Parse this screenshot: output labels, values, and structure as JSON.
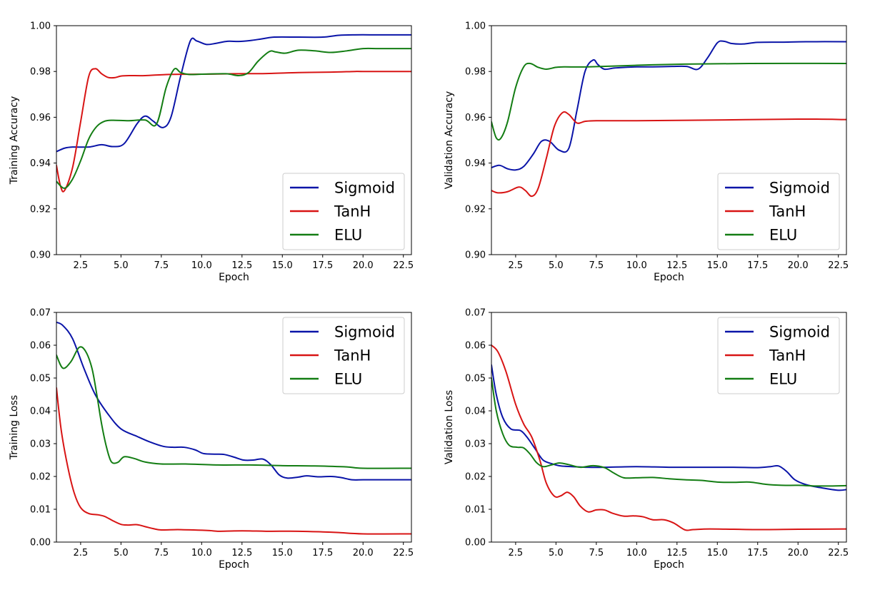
{
  "colors": {
    "Sigmoid": "#0a14a8",
    "TanH": "#d81414",
    "ELU": "#137d13"
  },
  "chart_data": [
    {
      "type": "line",
      "xlabel": "Epoch",
      "ylabel": "Training Accuracy",
      "xlim": [
        1,
        23
      ],
      "ylim": [
        0.9,
        1.0
      ],
      "xticks": [
        "2.5",
        "5.0",
        "7.5",
        "10.0",
        "12.5",
        "15.0",
        "17.5",
        "20.0",
        "22.5"
      ],
      "yticks": [
        "0.90",
        "0.92",
        "0.94",
        "0.96",
        "0.98",
        "1.00"
      ],
      "legend": "bottom-right",
      "series": [
        {
          "name": "Sigmoid",
          "x": [
            1,
            1.5,
            2,
            3,
            3.8,
            4.5,
            5.2,
            6,
            6.5,
            7,
            7.6,
            8.1,
            8.7,
            9.3,
            9.7,
            10.3,
            10.9,
            11.6,
            12.3,
            13,
            13.7,
            14.5,
            16,
            17.5,
            18.5,
            19.5,
            21,
            23
          ],
          "y": [
            0.945,
            0.9465,
            0.947,
            0.947,
            0.948,
            0.9472,
            0.9485,
            0.9572,
            0.9605,
            0.9583,
            0.9555,
            0.9601,
            0.978,
            0.9934,
            0.9933,
            0.9918,
            0.9923,
            0.9932,
            0.9931,
            0.9935,
            0.9942,
            0.995,
            0.995,
            0.995,
            0.9958,
            0.996,
            0.996,
            0.996
          ]
        },
        {
          "name": "TanH",
          "x": [
            1,
            1.25,
            1.5,
            2,
            2.5,
            3,
            3.4,
            3.8,
            4.2,
            4.6,
            5,
            5.5,
            6.5,
            8,
            10,
            12,
            14,
            16,
            18,
            19.5,
            20,
            23
          ],
          "y": [
            0.939,
            0.93,
            0.928,
            0.938,
            0.958,
            0.9778,
            0.9812,
            0.979,
            0.9774,
            0.9773,
            0.978,
            0.9782,
            0.9782,
            0.9787,
            0.9788,
            0.979,
            0.9791,
            0.9795,
            0.9797,
            0.98,
            0.98,
            0.98
          ]
        },
        {
          "name": "ELU",
          "x": [
            1,
            1.5,
            2,
            2.5,
            3,
            3.5,
            4,
            4.5,
            5.5,
            6.5,
            7.2,
            7.8,
            8.3,
            8.7,
            9.2,
            10,
            11.5,
            12.3,
            12.9,
            13.5,
            14.2,
            14.6,
            15.2,
            16,
            17,
            18,
            19,
            20,
            21,
            23
          ],
          "y": [
            0.932,
            0.929,
            0.933,
            0.941,
            0.9505,
            0.956,
            0.9583,
            0.9587,
            0.9585,
            0.9588,
            0.957,
            0.973,
            0.981,
            0.9795,
            0.9787,
            0.9788,
            0.979,
            0.9782,
            0.9795,
            0.9845,
            0.9887,
            0.9885,
            0.988,
            0.9893,
            0.989,
            0.9883,
            0.989,
            0.99,
            0.99,
            0.99
          ]
        }
      ]
    },
    {
      "type": "line",
      "xlabel": "Epoch",
      "ylabel": "Validation Accuracy",
      "xlim": [
        1,
        23
      ],
      "ylim": [
        0.9,
        1.0
      ],
      "xticks": [
        "2.5",
        "5.0",
        "7.5",
        "10.0",
        "12.5",
        "15.0",
        "17.5",
        "20.0",
        "22.5"
      ],
      "yticks": [
        "0.90",
        "0.92",
        "0.94",
        "0.96",
        "0.98",
        "1.00"
      ],
      "legend": "bottom-right",
      "series": [
        {
          "name": "Sigmoid",
          "x": [
            1,
            1.5,
            2,
            2.5,
            3,
            3.6,
            4.1,
            4.6,
            5.2,
            5.8,
            6.3,
            6.8,
            7.3,
            7.6,
            8,
            8.6,
            9.3,
            10,
            11,
            12.2,
            13.1,
            13.8,
            14.4,
            15,
            15.4,
            15.9,
            16.6,
            17.5,
            19,
            20.5,
            23
          ],
          "y": [
            0.938,
            0.939,
            0.9375,
            0.937,
            0.9385,
            0.944,
            0.9495,
            0.9495,
            0.9456,
            0.9465,
            0.963,
            0.98,
            0.985,
            0.983,
            0.981,
            0.9815,
            0.9818,
            0.982,
            0.982,
            0.9822,
            0.9822,
            0.981,
            0.986,
            0.9925,
            0.9932,
            0.9922,
            0.992,
            0.9927,
            0.9928,
            0.993,
            0.993
          ]
        },
        {
          "name": "TanH",
          "x": [
            1,
            1.4,
            2,
            2.7,
            3.1,
            3.5,
            3.9,
            4.4,
            4.9,
            5.4,
            5.8,
            6.3,
            6.8,
            7.5,
            10,
            15,
            20,
            23
          ],
          "y": [
            0.928,
            0.927,
            0.9275,
            0.9295,
            0.928,
            0.9255,
            0.929,
            0.942,
            0.956,
            0.962,
            0.9612,
            0.9575,
            0.9582,
            0.9585,
            0.9585,
            0.9588,
            0.9592,
            0.959
          ]
        },
        {
          "name": "ELU",
          "x": [
            1,
            1.3,
            1.6,
            2,
            2.5,
            3,
            3.4,
            3.9,
            4.4,
            5,
            5.5,
            7,
            10,
            13,
            17,
            23
          ],
          "y": [
            0.958,
            0.951,
            0.951,
            0.958,
            0.973,
            0.982,
            0.9835,
            0.9818,
            0.981,
            0.9818,
            0.982,
            0.982,
            0.9827,
            0.9832,
            0.9835,
            0.9835
          ]
        }
      ]
    },
    {
      "type": "line",
      "xlabel": "Epoch",
      "ylabel": "Training Loss",
      "xlim": [
        1,
        23
      ],
      "ylim": [
        0.0,
        0.07
      ],
      "xticks": [
        "2.5",
        "5.0",
        "7.5",
        "10.0",
        "12.5",
        "15.0",
        "17.5",
        "20.0",
        "22.5"
      ],
      "yticks": [
        "0.00",
        "0.01",
        "0.02",
        "0.03",
        "0.04",
        "0.05",
        "0.06",
        "0.07"
      ],
      "legend": "top-right",
      "series": [
        {
          "name": "Sigmoid",
          "x": [
            1,
            1.4,
            2,
            2.7,
            3.4,
            4.2,
            5,
            6,
            6.8,
            7.6,
            8.2,
            8.9,
            9.6,
            10.1,
            10.8,
            11.4,
            12,
            12.6,
            13.2,
            13.8,
            14.3,
            14.8,
            15.3,
            16,
            16.5,
            17.2,
            18,
            18.6,
            19.3,
            20,
            21,
            23
          ],
          "y": [
            0.067,
            0.066,
            0.062,
            0.053,
            0.045,
            0.039,
            0.0345,
            0.0322,
            0.0305,
            0.0292,
            0.0289,
            0.0289,
            0.0281,
            0.027,
            0.0268,
            0.0267,
            0.0259,
            0.025,
            0.025,
            0.0253,
            0.0235,
            0.0205,
            0.0195,
            0.0198,
            0.0202,
            0.0199,
            0.02,
            0.0197,
            0.019,
            0.019,
            0.019,
            0.019
          ]
        },
        {
          "name": "TanH",
          "x": [
            1,
            1.3,
            1.7,
            2.1,
            2.5,
            3,
            3.6,
            4,
            4.5,
            5,
            5.4,
            6,
            6.5,
            7,
            7.5,
            8.5,
            9.5,
            10.5,
            11,
            12,
            13,
            14,
            16,
            17.5,
            18.5,
            20,
            23
          ],
          "y": [
            0.047,
            0.034,
            0.023,
            0.015,
            0.0105,
            0.0087,
            0.0083,
            0.0078,
            0.0065,
            0.0054,
            0.0052,
            0.0053,
            0.0047,
            0.0041,
            0.0037,
            0.0038,
            0.0037,
            0.0035,
            0.0033,
            0.0034,
            0.0034,
            0.0033,
            0.0033,
            0.0031,
            0.0029,
            0.0025,
            0.0025
          ]
        },
        {
          "name": "ELU",
          "x": [
            1,
            1.4,
            1.9,
            2.4,
            2.8,
            3.2,
            3.5,
            3.8,
            4.1,
            4.4,
            4.8,
            5.2,
            5.8,
            6.5,
            7.5,
            9,
            11,
            13,
            15,
            17,
            19,
            20,
            23
          ],
          "y": [
            0.057,
            0.053,
            0.055,
            0.0593,
            0.0582,
            0.053,
            0.045,
            0.036,
            0.029,
            0.0245,
            0.0243,
            0.026,
            0.0255,
            0.0244,
            0.0238,
            0.0238,
            0.0235,
            0.0235,
            0.0233,
            0.0232,
            0.0229,
            0.0225,
            0.0225
          ]
        }
      ]
    },
    {
      "type": "line",
      "xlabel": "Epoch",
      "ylabel": "Validation Loss",
      "xlim": [
        1,
        23
      ],
      "ylim": [
        0.0,
        0.07
      ],
      "xticks": [
        "2.5",
        "5.0",
        "7.5",
        "10.0",
        "12.5",
        "15.0",
        "17.5",
        "20.0",
        "22.5"
      ],
      "yticks": [
        "0.00",
        "0.01",
        "0.02",
        "0.03",
        "0.04",
        "0.05",
        "0.06",
        "0.07"
      ],
      "legend": "top-right",
      "series": [
        {
          "name": "Sigmoid",
          "x": [
            1,
            1.3,
            1.7,
            2.2,
            2.8,
            3.2,
            3.7,
            4.2,
            4.8,
            5.3,
            6,
            7,
            8,
            10,
            12,
            14,
            16,
            17.5,
            18.3,
            18.8,
            19.3,
            19.8,
            20.5,
            21.5,
            22.5,
            23
          ],
          "y": [
            0.054,
            0.045,
            0.038,
            0.0345,
            0.034,
            0.032,
            0.0285,
            0.025,
            0.0238,
            0.0232,
            0.023,
            0.0228,
            0.0228,
            0.023,
            0.0228,
            0.0228,
            0.0228,
            0.0227,
            0.023,
            0.0232,
            0.0215,
            0.019,
            0.0175,
            0.0165,
            0.0158,
            0.016
          ]
        },
        {
          "name": "TanH",
          "x": [
            1,
            1.4,
            1.9,
            2.5,
            3,
            3.5,
            4,
            4.4,
            4.9,
            5.3,
            5.7,
            6.1,
            6.5,
            7,
            7.5,
            8,
            8.5,
            9.2,
            9.8,
            10.4,
            11,
            11.7,
            12.3,
            13,
            13.5,
            14.5,
            16,
            18,
            20,
            23
          ],
          "y": [
            0.06,
            0.058,
            0.052,
            0.042,
            0.036,
            0.032,
            0.025,
            0.018,
            0.014,
            0.0141,
            0.0152,
            0.0138,
            0.011,
            0.0092,
            0.0098,
            0.0098,
            0.0088,
            0.0079,
            0.008,
            0.0077,
            0.0068,
            0.0068,
            0.0058,
            0.0037,
            0.0038,
            0.004,
            0.0039,
            0.0038,
            0.0039,
            0.004
          ]
        },
        {
          "name": "ELU",
          "x": [
            1,
            1.3,
            1.7,
            2.1,
            2.6,
            3,
            3.4,
            3.8,
            4.2,
            4.7,
            5.2,
            5.8,
            6.5,
            7.3,
            8,
            8.6,
            9.2,
            10,
            11,
            12,
            13,
            14,
            15,
            16,
            17,
            18,
            19,
            20,
            21,
            22,
            23
          ],
          "y": [
            0.05,
            0.04,
            0.033,
            0.0295,
            0.0289,
            0.0287,
            0.0268,
            0.0242,
            0.023,
            0.0235,
            0.0241,
            0.0236,
            0.0228,
            0.0233,
            0.0227,
            0.021,
            0.0196,
            0.0196,
            0.0197,
            0.0193,
            0.019,
            0.0188,
            0.0183,
            0.0182,
            0.0183,
            0.0176,
            0.0173,
            0.0173,
            0.0171,
            0.0171,
            0.0172
          ]
        }
      ]
    }
  ]
}
